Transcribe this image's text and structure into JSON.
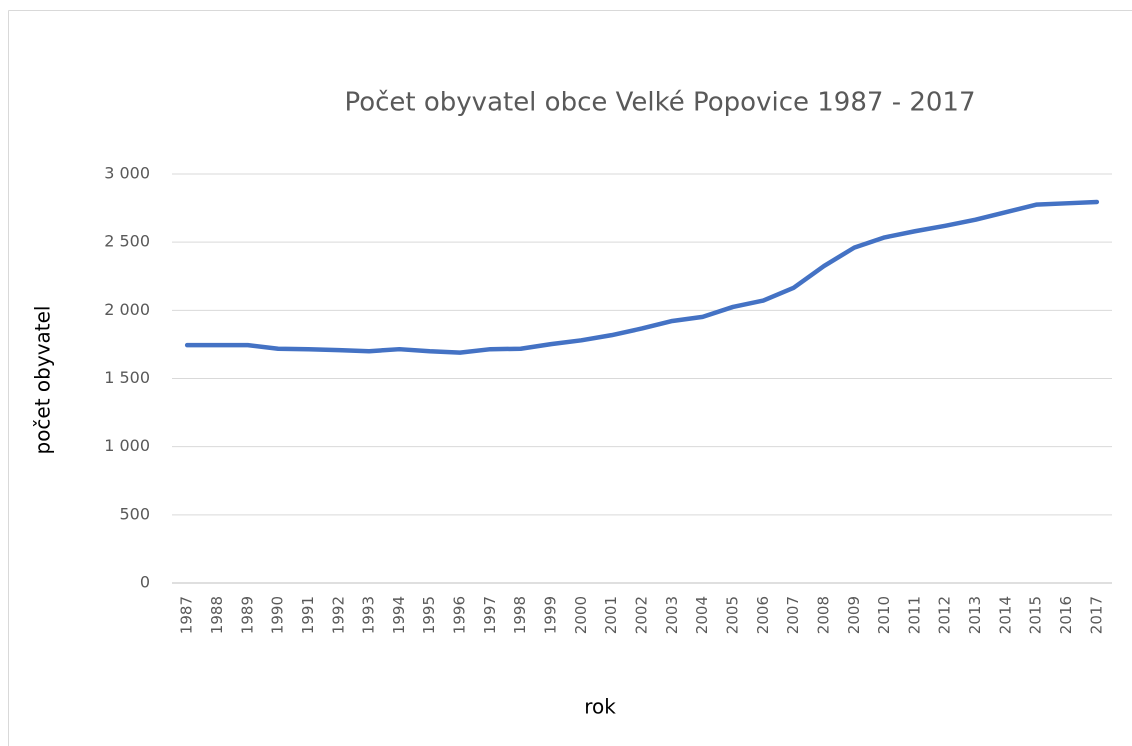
{
  "chart_data": {
    "type": "line",
    "title": "Počet obyvatel obce Velké Popovice 1987 - 2017",
    "x_label": "rok",
    "y_label": "počet obyvatel",
    "categories": [
      "1987",
      "1988",
      "1989",
      "1990",
      "1991",
      "1992",
      "1993",
      "1994",
      "1995",
      "1996",
      "1997",
      "1998",
      "1999",
      "2000",
      "2001",
      "2002",
      "2003",
      "2004",
      "2005",
      "2006",
      "2007",
      "2008",
      "2009",
      "2010",
      "2011",
      "2012",
      "2013",
      "2014",
      "2015",
      "2016",
      "2017"
    ],
    "series": [
      {
        "color": "#4472c4",
        "values": [
          1745,
          1745,
          1745,
          1718,
          1715,
          1708,
          1700,
          1715,
          1700,
          1690,
          1715,
          1718,
          1752,
          1780,
          1818,
          1867,
          1922,
          1952,
          2025,
          2072,
          2165,
          2325,
          2460,
          2535,
          2580,
          2620,
          2665,
          2720,
          2775,
          2785,
          2795
        ]
      }
    ],
    "ylim": [
      0,
      3000
    ],
    "yticks": [
      0,
      500,
      {
        "value": 1000,
        "label": "1 000"
      },
      {
        "value": 1500,
        "label": "1 500"
      },
      {
        "value": 2000,
        "label": "2 000"
      },
      {
        "value": 2500,
        "label": "2 500"
      },
      {
        "value": 3000,
        "label": "3 000"
      }
    ],
    "grid": true
  }
}
